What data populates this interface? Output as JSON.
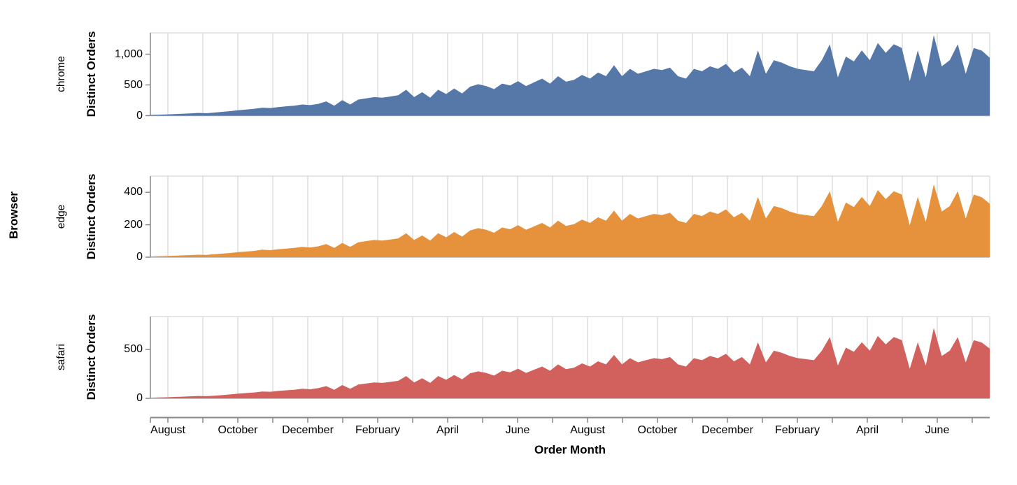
{
  "chart_data": {
    "type": "area",
    "facet_title": "Browser",
    "ylabel": "Distinct Orders",
    "grid": true,
    "x": {
      "title": "Order Month",
      "tick_labels": [
        "August",
        "October",
        "December",
        "February",
        "April",
        "June",
        "August",
        "October",
        "December",
        "February",
        "April",
        "June"
      ],
      "months_shown": 24,
      "note_span": "weekly points from mid-July year 1 to mid-July year 3"
    },
    "colors": {
      "chrome": "#5578a8",
      "edge": "#e6923c",
      "safari": "#d2615d",
      "gridline": "#dddddd",
      "axis": "#888888",
      "baseline": "#b3b3b3"
    },
    "facets": [
      {
        "name": "chrome",
        "color": "#5578a8",
        "ylim": [
          0,
          1347
        ],
        "yticks": [
          {
            "v": 0,
            "label": "0"
          },
          {
            "v": 500,
            "label": "500"
          },
          {
            "v": 1000,
            "label": "1,000"
          }
        ],
        "values": [
          12,
          16,
          20,
          26,
          32,
          38,
          44,
          40,
          50,
          62,
          74,
          88,
          100,
          112,
          130,
          124,
          140,
          152,
          162,
          182,
          172,
          192,
          232,
          162,
          252,
          182,
          262,
          282,
          302,
          292,
          312,
          332,
          422,
          302,
          382,
          292,
          422,
          352,
          442,
          362,
          472,
          512,
          482,
          432,
          522,
          492,
          562,
          482,
          542,
          602,
          522,
          642,
          552,
          582,
          662,
          602,
          702,
          642,
          822,
          642,
          762,
          682,
          722,
          762,
          742,
          782,
          642,
          602,
          762,
          722,
          802,
          762,
          842,
          702,
          782,
          642,
          1062,
          682,
          902,
          862,
          802,
          762,
          742,
          722,
          902,
          1162,
          622,
          962,
          882,
          1062,
          902,
          1182,
          1022,
          1162,
          1102,
          562,
          1062,
          622,
          1310,
          802,
          902,
          1162,
          682,
          1102,
          1058,
          942
        ]
      },
      {
        "name": "edge",
        "color": "#e6923c",
        "ylim": [
          0,
          500
        ],
        "yticks": [
          {
            "v": 0,
            "label": "0"
          },
          {
            "v": 200,
            "label": "200"
          },
          {
            "v": 400,
            "label": "400"
          }
        ],
        "values": [
          4,
          6,
          7,
          9,
          11,
          13,
          15,
          14,
          18,
          22,
          26,
          31,
          35,
          39,
          46,
          43,
          49,
          53,
          57,
          64,
          60,
          67,
          81,
          57,
          88,
          64,
          92,
          99,
          106,
          102,
          109,
          116,
          148,
          106,
          134,
          102,
          148,
          123,
          155,
          127,
          165,
          179,
          169,
          151,
          183,
          172,
          197,
          169,
          190,
          211,
          183,
          225,
          193,
          204,
          232,
          211,
          246,
          225,
          288,
          225,
          267,
          239,
          253,
          267,
          260,
          274,
          225,
          211,
          267,
          253,
          281,
          267,
          295,
          246,
          274,
          225,
          372,
          239,
          316,
          302,
          281,
          267,
          260,
          253,
          316,
          407,
          218,
          337,
          309,
          372,
          316,
          414,
          358,
          407,
          386,
          197,
          372,
          218,
          450,
          281,
          316,
          407,
          239,
          386,
          370,
          330
        ]
      },
      {
        "name": "safari",
        "color": "#d2615d",
        "ylim": [
          0,
          836
        ],
        "yticks": [
          {
            "v": 0,
            "label": "0"
          },
          {
            "v": 500,
            "label": "500"
          }
        ],
        "values": [
          6,
          9,
          11,
          14,
          17,
          21,
          24,
          22,
          27,
          33,
          40,
          48,
          54,
          60,
          70,
          67,
          76,
          82,
          87,
          98,
          93,
          104,
          125,
          87,
          136,
          98,
          141,
          152,
          163,
          158,
          168,
          179,
          228,
          163,
          206,
          158,
          228,
          190,
          239,
          195,
          255,
          276,
          260,
          233,
          282,
          266,
          303,
          260,
          293,
          325,
          282,
          347,
          298,
          314,
          357,
          325,
          379,
          347,
          444,
          347,
          411,
          368,
          390,
          411,
          401,
          422,
          347,
          325,
          411,
          390,
          433,
          411,
          455,
          379,
          422,
          347,
          573,
          368,
          487,
          465,
          433,
          411,
          401,
          390,
          487,
          627,
          336,
          519,
          476,
          573,
          487,
          638,
          552,
          627,
          595,
          303,
          573,
          336,
          720,
          433,
          487,
          627,
          368,
          595,
          571,
          509
        ]
      }
    ]
  }
}
